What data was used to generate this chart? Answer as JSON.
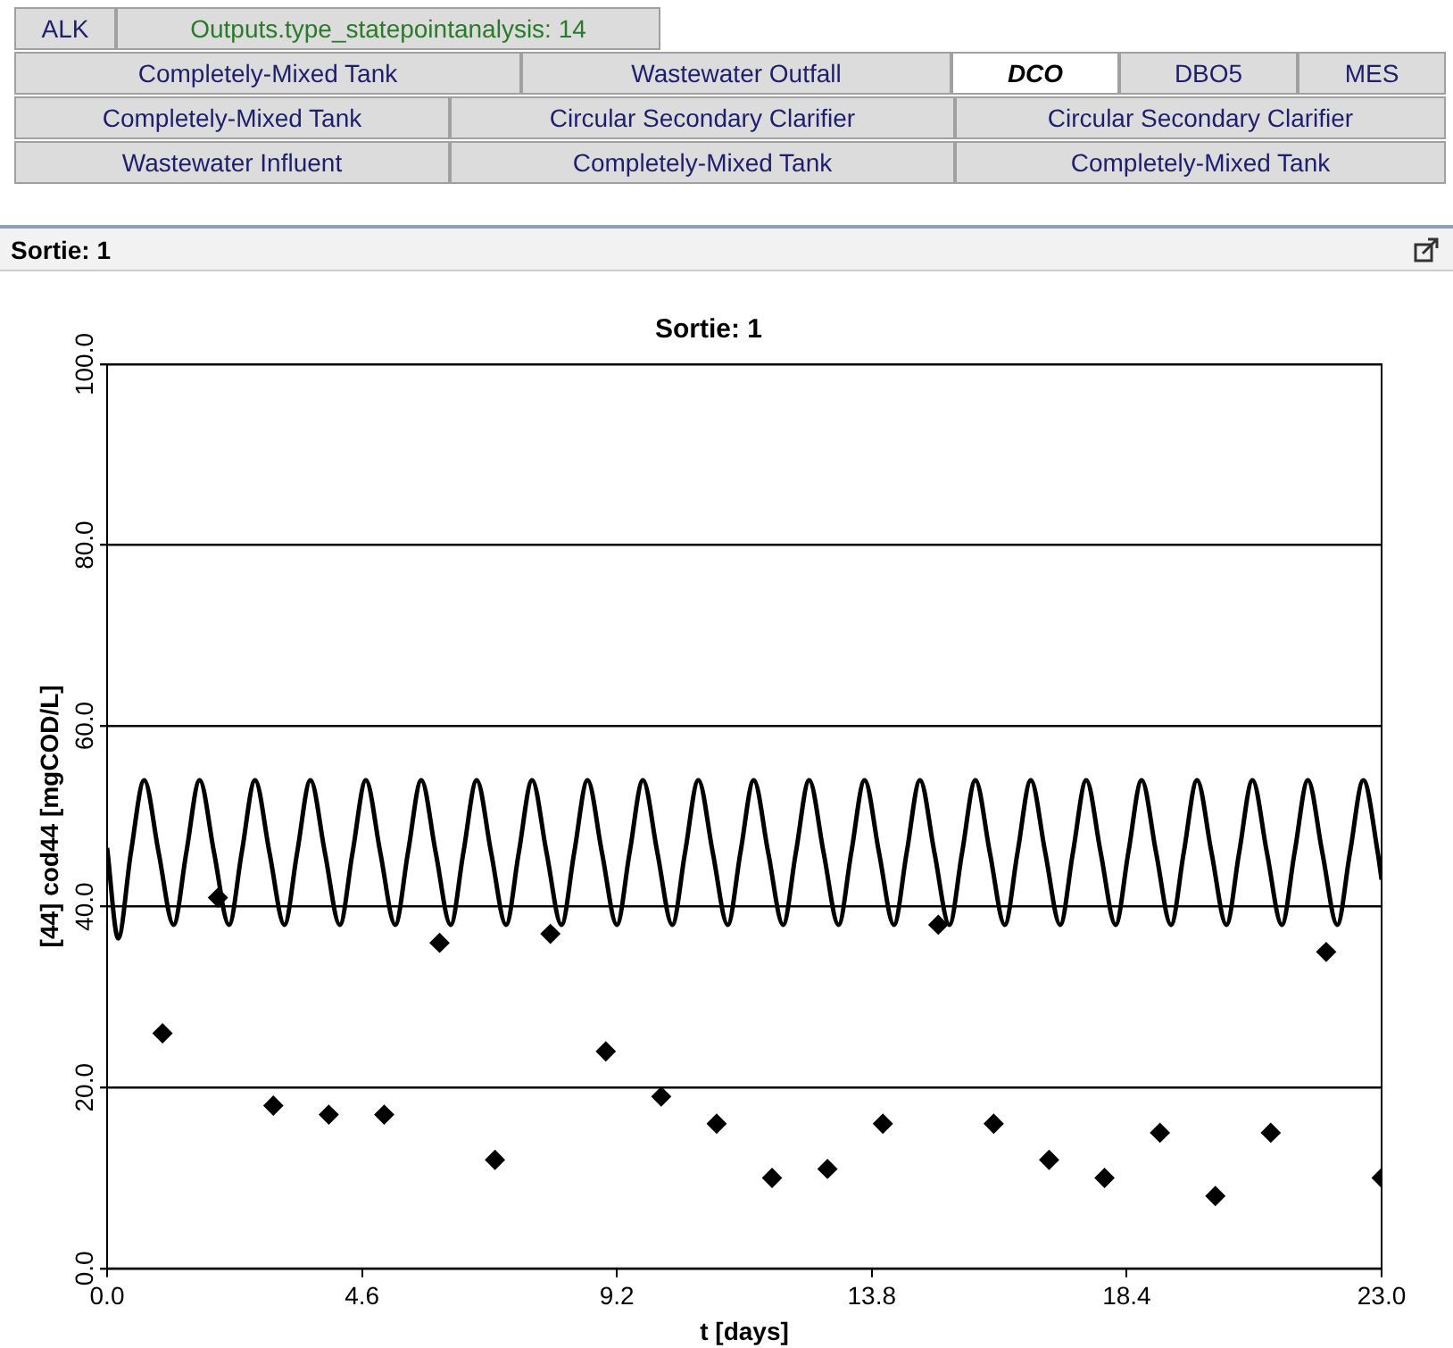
{
  "chart_data": {
    "type": "scatter",
    "title": "Sortie: 1",
    "xlabel": "t [days]",
    "ylabel": "[44] cod44 [mgCOD/L]",
    "annotations": [
      "ALK",
      "Outputs.type_statepointanalysis: 14",
      "Completely-Mixed Tank",
      "Wastewater Outfall",
      "DCO",
      "DBO5",
      "MES",
      "Completely-Mixed Tank",
      "Circular Secondary Clarifier",
      "Circular Secondary Clarifier",
      "Wastewater Influent",
      "Completely-Mixed Tank",
      "Completely-Mixed Tank",
      "Sortie: 1"
    ],
    "xlim": [
      0,
      23
    ],
    "xticks": [
      {
        "value": 0,
        "label": "0.0"
      },
      {
        "value": 4.6,
        "label": "4.6"
      },
      {
        "value": 9.2,
        "label": "9.2"
      },
      {
        "value": 13.8,
        "label": "13.8"
      },
      {
        "value": 18.4,
        "label": "18.4"
      },
      {
        "value": 23,
        "label": "23.0"
      }
    ],
    "ylim": [
      0,
      100
    ],
    "yticks": [
      {
        "value": 0,
        "label": "0.0"
      },
      {
        "value": 20,
        "label": "20.0"
      },
      {
        "value": 40,
        "label": "40.0"
      },
      {
        "value": 60,
        "label": "60.0"
      },
      {
        "value": 80,
        "label": "80.0"
      },
      {
        "value": 100,
        "label": "100.0"
      }
    ],
    "grid": "y",
    "legend": false,
    "series": [
      {
        "type": "line",
        "color": "#000000",
        "marker": "none",
        "line_style": "solid",
        "x": [
          0,
          0.2,
          0.43,
          0.67,
          0.93,
          1.2,
          1.43,
          1.67,
          1.93,
          2.2,
          2.43,
          2.67,
          2.93,
          3.2,
          3.43,
          3.67,
          3.93,
          4.2,
          4.43,
          4.67,
          4.93,
          5.2,
          5.43,
          5.67,
          5.93,
          6.2,
          6.43,
          6.67,
          6.93,
          7.2,
          7.43,
          7.67,
          7.93,
          8.2,
          8.43,
          8.67,
          8.93,
          9.2,
          9.43,
          9.67,
          9.93,
          10.2,
          10.43,
          10.67,
          10.93,
          11.2,
          11.43,
          11.67,
          11.93,
          12.2,
          12.43,
          12.67,
          12.93,
          13.2,
          13.43,
          13.67,
          13.93,
          14.2,
          14.43,
          14.67,
          14.93,
          15.2,
          15.43,
          15.67,
          15.93,
          16.2,
          16.43,
          16.67,
          16.93,
          17.2,
          17.43,
          17.67,
          17.93,
          18.2,
          18.43,
          18.67,
          18.93,
          19.2,
          19.43,
          19.67,
          19.93,
          20.2,
          20.43,
          20.67,
          20.93,
          21.2,
          21.43,
          21.67,
          21.93,
          22.2,
          22.43,
          22.67,
          22.93,
          23
        ],
        "values": [
          46.5,
          36.5,
          46,
          54,
          46,
          38,
          46,
          54,
          46,
          38,
          46,
          54,
          46,
          38,
          46,
          54,
          46,
          38,
          46,
          54,
          46,
          38,
          46,
          54,
          46,
          38,
          46,
          54,
          46,
          38,
          46,
          54,
          46,
          38,
          46,
          54,
          46,
          38,
          46,
          54,
          46,
          38,
          46,
          54,
          46,
          38,
          46,
          54,
          46,
          38,
          46,
          54,
          46,
          38,
          46,
          54,
          46,
          38,
          46,
          54,
          46,
          38,
          46,
          54,
          46,
          38,
          46,
          54,
          46,
          38,
          46,
          54,
          46,
          38,
          46,
          54,
          46,
          38,
          46,
          54,
          46,
          38,
          46,
          54,
          46,
          38,
          46,
          54,
          46,
          38,
          46,
          54,
          46,
          43
        ]
      },
      {
        "type": "scatter",
        "color": "#000000",
        "marker": "diamond",
        "x": [
          1,
          2,
          3,
          4,
          5,
          6,
          7,
          8,
          9,
          10,
          11,
          12,
          13,
          14,
          15,
          16,
          17,
          18,
          19,
          20,
          21,
          22,
          23
        ],
        "values": [
          26,
          41,
          18,
          17,
          17,
          36,
          12,
          37,
          24,
          19,
          16,
          10,
          11,
          16,
          38,
          16,
          12,
          10,
          15,
          8,
          15,
          35,
          10
        ]
      }
    ]
  }
}
